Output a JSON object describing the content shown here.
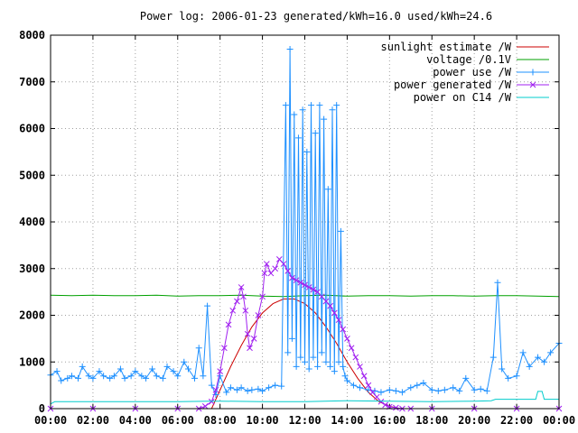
{
  "chart_data": {
    "type": "line",
    "title": "Power log: 2006-01-23 generated/kWh=16.0 used/kWh=24.6",
    "xlabel": "",
    "ylabel": "",
    "xlim": [
      0,
      24
    ],
    "ylim": [
      0,
      8000
    ],
    "x_ticks": [
      {
        "value": 0,
        "label": "00:00"
      },
      {
        "value": 2,
        "label": "02:00"
      },
      {
        "value": 4,
        "label": "04:00"
      },
      {
        "value": 6,
        "label": "06:00"
      },
      {
        "value": 8,
        "label": "08:00"
      },
      {
        "value": 10,
        "label": "10:00"
      },
      {
        "value": 12,
        "label": "12:00"
      },
      {
        "value": 14,
        "label": "14:00"
      },
      {
        "value": 16,
        "label": "16:00"
      },
      {
        "value": 18,
        "label": "18:00"
      },
      {
        "value": 20,
        "label": "20:00"
      },
      {
        "value": 22,
        "label": "22:00"
      },
      {
        "value": 24,
        "label": "00:00"
      }
    ],
    "y_ticks": [
      {
        "value": 0,
        "label": "0"
      },
      {
        "value": 1000,
        "label": "1000"
      },
      {
        "value": 2000,
        "label": "2000"
      },
      {
        "value": 3000,
        "label": "3000"
      },
      {
        "value": 4000,
        "label": "4000"
      },
      {
        "value": 5000,
        "label": "5000"
      },
      {
        "value": 6000,
        "label": "6000"
      },
      {
        "value": 7000,
        "label": "7000"
      },
      {
        "value": 8000,
        "label": "8000"
      }
    ],
    "grid": true,
    "legend_position": "top-right",
    "series": [
      {
        "name": "sunlight estimate /W",
        "color": "#cc0000",
        "marker": "none",
        "x": [
          7.6,
          8.0,
          8.5,
          9.0,
          9.5,
          10.0,
          10.5,
          11.0,
          11.5,
          12.0,
          12.5,
          13.0,
          13.5,
          14.0,
          14.5,
          15.0,
          15.5,
          16.0,
          16.5
        ],
        "y": [
          0,
          400,
          900,
          1350,
          1750,
          2050,
          2250,
          2350,
          2350,
          2250,
          2050,
          1750,
          1400,
          1000,
          650,
          350,
          150,
          50,
          0
        ]
      },
      {
        "name": "voltage /0.1V",
        "color": "#00a000",
        "marker": "none",
        "x": [
          0,
          1,
          2,
          3,
          4,
          5,
          6,
          7,
          8,
          9,
          10,
          11,
          12,
          13,
          14,
          15,
          16,
          17,
          18,
          19,
          20,
          21,
          22,
          23,
          24
        ],
        "y": [
          2430,
          2420,
          2430,
          2420,
          2420,
          2430,
          2410,
          2420,
          2420,
          2430,
          2410,
          2400,
          2420,
          2430,
          2410,
          2420,
          2420,
          2410,
          2420,
          2420,
          2410,
          2420,
          2420,
          2410,
          2400
        ]
      },
      {
        "name": "power use /W",
        "color": "#1e90ff",
        "marker": "plus",
        "x": [
          0,
          0.3,
          0.5,
          0.8,
          1.0,
          1.3,
          1.5,
          1.8,
          2.0,
          2.3,
          2.5,
          2.8,
          3.0,
          3.3,
          3.5,
          3.8,
          4.0,
          4.3,
          4.5,
          4.8,
          5.0,
          5.3,
          5.5,
          5.8,
          6.0,
          6.3,
          6.5,
          6.8,
          7.0,
          7.2,
          7.4,
          7.6,
          7.8,
          8.0,
          8.3,
          8.5,
          8.8,
          9.0,
          9.3,
          9.5,
          9.8,
          10.0,
          10.3,
          10.6,
          10.9,
          11.1,
          11.2,
          11.3,
          11.4,
          11.5,
          11.6,
          11.7,
          11.8,
          11.9,
          12.0,
          12.1,
          12.2,
          12.3,
          12.4,
          12.5,
          12.6,
          12.7,
          12.8,
          12.9,
          13.0,
          13.1,
          13.2,
          13.3,
          13.4,
          13.5,
          13.6,
          13.7,
          13.8,
          13.9,
          14.0,
          14.3,
          14.6,
          15.0,
          15.3,
          15.6,
          16.0,
          16.3,
          16.6,
          17.0,
          17.3,
          17.6,
          18.0,
          18.3,
          18.6,
          19.0,
          19.3,
          19.6,
          20.0,
          20.3,
          20.6,
          20.9,
          21.1,
          21.3,
          21.6,
          22.0,
          22.3,
          22.6,
          23.0,
          23.3,
          23.6,
          24.0
        ],
        "y": [
          720,
          800,
          600,
          650,
          700,
          650,
          900,
          700,
          650,
          800,
          700,
          650,
          700,
          850,
          650,
          700,
          800,
          700,
          650,
          850,
          700,
          650,
          900,
          800,
          700,
          1000,
          850,
          650,
          1300,
          700,
          2200,
          500,
          300,
          700,
          350,
          450,
          400,
          450,
          380,
          400,
          420,
          380,
          450,
          500,
          480,
          6500,
          1200,
          7700,
          1500,
          6300,
          900,
          5800,
          1100,
          6400,
          1000,
          5500,
          850,
          6500,
          1100,
          5900,
          900,
          6500,
          1200,
          6200,
          1000,
          4700,
          900,
          6400,
          800,
          6500,
          1000,
          3800,
          900,
          700,
          600,
          500,
          450,
          400,
          380,
          350,
          400,
          380,
          350,
          450,
          500,
          550,
          400,
          380,
          400,
          450,
          380,
          650,
          400,
          420,
          380,
          1100,
          2700,
          850,
          650,
          700,
          1200,
          900,
          1100,
          1000,
          1200,
          1400
        ]
      },
      {
        "name": "power generated /W",
        "color": "#a020f0",
        "marker": "cross",
        "x": [
          0,
          2,
          4,
          6,
          7.0,
          7.3,
          7.6,
          7.8,
          8.0,
          8.2,
          8.4,
          8.6,
          8.8,
          9.0,
          9.1,
          9.2,
          9.3,
          9.4,
          9.6,
          9.8,
          10.0,
          10.1,
          10.2,
          10.4,
          10.6,
          10.8,
          11.0,
          11.2,
          11.4,
          11.6,
          11.8,
          12.0,
          12.2,
          12.4,
          12.6,
          12.8,
          13.0,
          13.2,
          13.4,
          13.6,
          13.8,
          14.0,
          14.2,
          14.4,
          14.6,
          14.8,
          15.0,
          15.2,
          15.4,
          15.6,
          15.8,
          16.0,
          16.3,
          16.6,
          17.0,
          18,
          20,
          22,
          24
        ],
        "y": [
          0,
          0,
          0,
          0,
          0,
          50,
          150,
          400,
          800,
          1300,
          1800,
          2100,
          2300,
          2600,
          2400,
          2100,
          1600,
          1300,
          1500,
          2000,
          2400,
          2900,
          3100,
          2900,
          3000,
          3200,
          3100,
          2950,
          2800,
          2750,
          2700,
          2650,
          2600,
          2550,
          2500,
          2400,
          2300,
          2200,
          2050,
          1900,
          1700,
          1500,
          1300,
          1100,
          900,
          700,
          500,
          350,
          250,
          150,
          80,
          40,
          20,
          0,
          0,
          0,
          0,
          0,
          0
        ]
      },
      {
        "name": "power on C14 /W",
        "color": "#00cccc",
        "marker": "none",
        "x": [
          0,
          0.2,
          2,
          4,
          6,
          7.5,
          8,
          10,
          12,
          14,
          16,
          18,
          20,
          20.8,
          21.0,
          22,
          22.9,
          23.0,
          23.2,
          23.3,
          24
        ],
        "y": [
          100,
          150,
          150,
          150,
          150,
          160,
          160,
          150,
          150,
          170,
          160,
          150,
          160,
          170,
          200,
          200,
          200,
          370,
          370,
          200,
          200
        ]
      }
    ]
  }
}
